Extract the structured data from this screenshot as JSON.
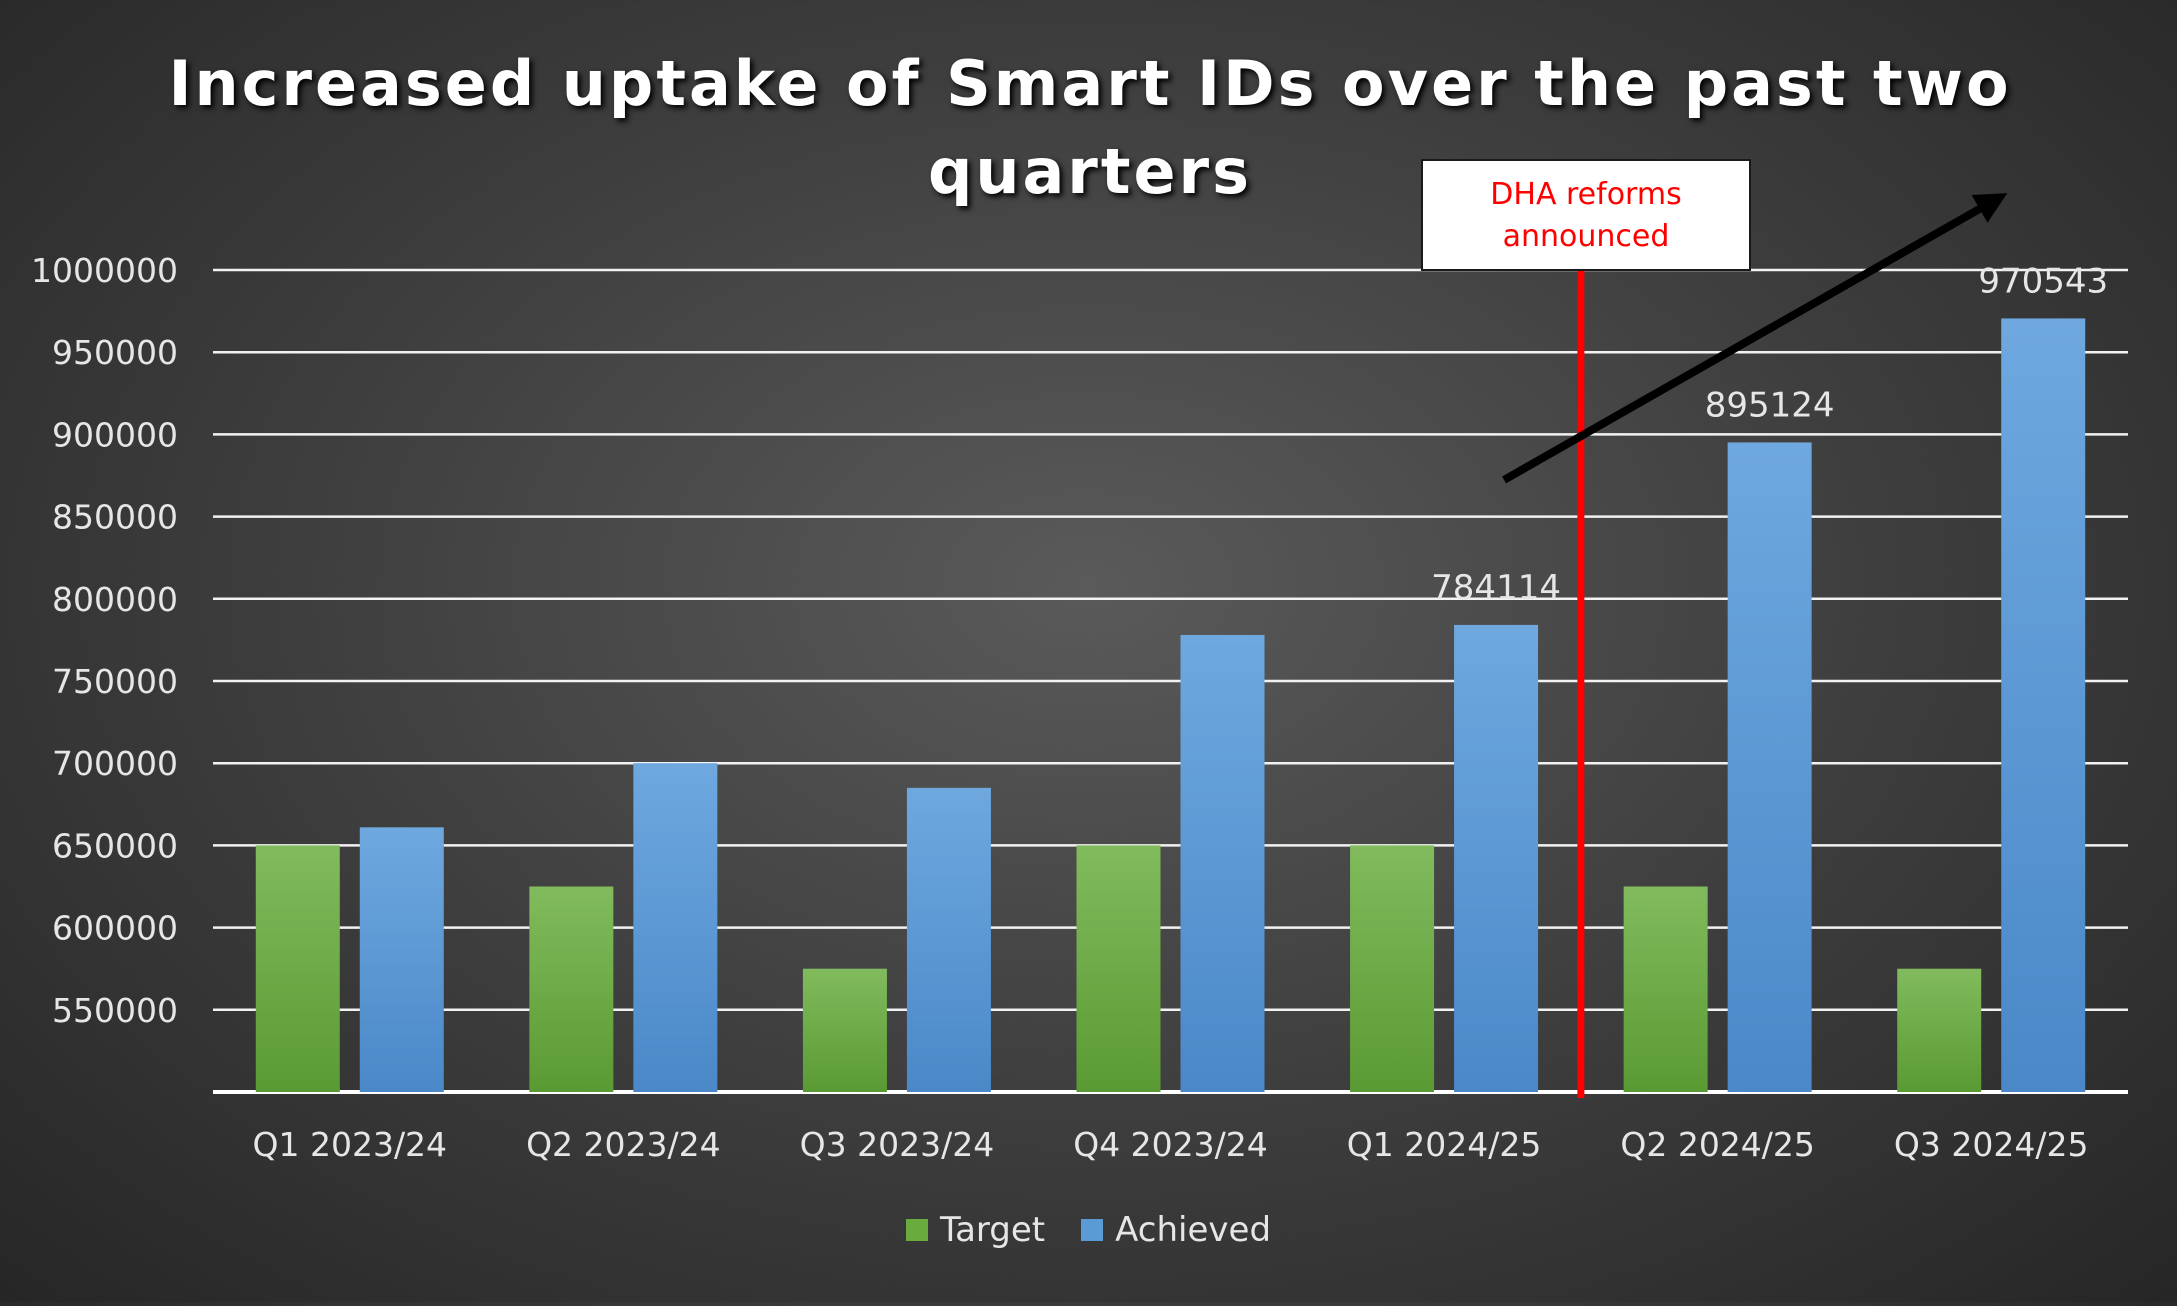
{
  "chart_data": {
    "type": "bar",
    "title": "Increased uptake of Smart IDs over the past two quarters",
    "categories": [
      "Q1 2023/24",
      "Q2 2023/24",
      "Q3 2023/24",
      "Q4 2023/24",
      "Q1 2024/25",
      "Q2 2024/25",
      "Q3 2024/25"
    ],
    "series": [
      {
        "name": "Target",
        "values": [
          650000,
          625000,
          575000,
          650000,
          650000,
          625000,
          575000
        ],
        "color": "#6aab3e"
      },
      {
        "name": "Achieved",
        "values": [
          661000,
          700000,
          685000,
          778000,
          784114,
          895124,
          970543
        ],
        "color": "#5b9bd5"
      }
    ],
    "data_labels": [
      {
        "category": "Q1 2024/25",
        "text": "784114"
      },
      {
        "category": "Q2 2024/25",
        "text": "895124"
      },
      {
        "category": "Q3 2024/25",
        "text": "970543"
      }
    ],
    "yticks": [
      550000,
      600000,
      650000,
      700000,
      750000,
      800000,
      850000,
      900000,
      950000,
      1000000
    ],
    "ylim": [
      500000,
      1000000
    ],
    "xlabel": "",
    "ylabel": "",
    "grid": true,
    "legend_position": "bottom-center",
    "annotation": {
      "text": "DHA reforms announced",
      "line1": "DHA reforms",
      "line2": "announced",
      "marker_between": [
        "Q1 2024/25",
        "Q2 2024/25"
      ],
      "line_color": "#ff0000"
    },
    "trend_arrow": {
      "from_category": "Q1 2024/25",
      "to_category": "Q3 2024/25",
      "color": "#000000"
    }
  }
}
